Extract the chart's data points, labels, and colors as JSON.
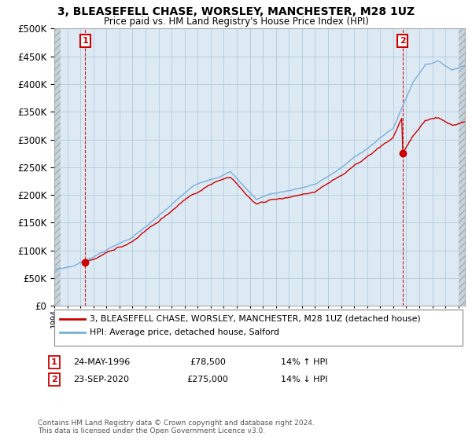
{
  "title": "3, BLEASEFELL CHASE, WORSLEY, MANCHESTER, M28 1UZ",
  "subtitle": "Price paid vs. HM Land Registry's House Price Index (HPI)",
  "legend_label_red": "3, BLEASEFELL CHASE, WORSLEY, MANCHESTER, M28 1UZ (detached house)",
  "legend_label_blue": "HPI: Average price, detached house, Salford",
  "annotation1_label": "1",
  "annotation1_date": "24-MAY-1996",
  "annotation1_price": "£78,500",
  "annotation1_hpi": "14% ↑ HPI",
  "annotation2_label": "2",
  "annotation2_date": "23-SEP-2020",
  "annotation2_price": "£275,000",
  "annotation2_hpi": "14% ↓ HPI",
  "footer": "Contains HM Land Registry data © Crown copyright and database right 2024.\nThis data is licensed under the Open Government Licence v3.0.",
  "sale1_year": 1996.38,
  "sale1_price": 78500,
  "sale2_year": 2020.72,
  "sale2_price": 275000,
  "xmin": 1994,
  "xmax": 2025.5,
  "ymin": 0,
  "ymax": 500000,
  "color_red": "#cc0000",
  "color_blue": "#7aaedc",
  "color_grid": "#b8cfe0",
  "plot_bg": "#ddeaf4",
  "hatch_bg": "#d0d8e0",
  "background_color": "#ffffff"
}
